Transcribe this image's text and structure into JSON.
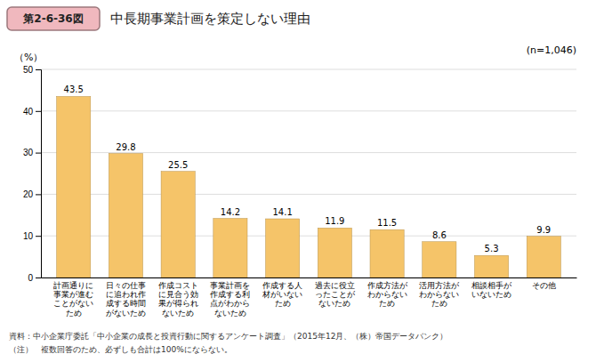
{
  "chart_data": {
    "type": "bar",
    "title": "中長期事業計画を策定しない理由",
    "ylabel": "（%）",
    "categories": [
      "計画通りに\n事業が進む\nことがない\nため",
      "日々の仕事\nに追われ作\n成する時間\nがないため",
      "作成コスト\nに見合う効\n果が得られ\nないため",
      "事業計画を\n作成する利\n点がわから\nないため",
      "作成する人\n材がいない\nため",
      "過去に役立\nったことが\nないため",
      "作成方法が\nわからない\nため",
      "活用方法が\nわからない\nため",
      "相談相手が\nいないため",
      "その他"
    ],
    "values": [
      43.5,
      29.8,
      25.5,
      14.2,
      14.1,
      11.9,
      11.5,
      8.6,
      5.3,
      9.9
    ],
    "color": "#F5C469",
    "ylim": [
      0,
      50
    ],
    "yticks": [
      0,
      10,
      20,
      30,
      40,
      50
    ],
    "grid": true,
    "data_labels": true,
    "annotations": [
      {
        "text": "第2-6-36図",
        "color": "#F0B8BE"
      },
      {
        "text": "(n=1,046)"
      },
      {
        "text": "資料：中小企業庁委託「中小企業の成長と投資行動に関するアンケート調査」（2015年12月、（株）帝国データバンク）"
      },
      {
        "text": "（注）　複数回答のため、必ずしも合計は100%にならない。"
      }
    ]
  }
}
